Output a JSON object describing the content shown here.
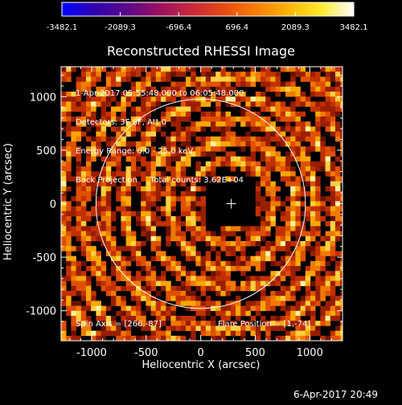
{
  "chart_data": {
    "type": "heatmap",
    "title": "Reconstructed RHESSI Image",
    "xlabel": "Heliocentric X (arcsec)",
    "ylabel": "Heliocentric Y (arcsec)",
    "xlim": [
      -1280,
      1300
    ],
    "ylim": [
      -1280,
      1280
    ],
    "xticks": [
      -1000,
      -500,
      0,
      500,
      1000
    ],
    "xtick_labels": [
      "-1000",
      "-500",
      "0",
      "500",
      "1000"
    ],
    "yticks": [
      -1000,
      -500,
      0,
      500,
      1000
    ],
    "ytick_labels": [
      "-1000",
      "-500",
      "0",
      "500",
      "1000"
    ],
    "colorbar": {
      "min": -3482.1,
      "max": 3482.1,
      "ticks": [
        -3482.1,
        -2089.3,
        -696.4,
        696.4,
        2089.3,
        3482.1
      ],
      "tick_labels": [
        "-3482.1",
        "-2089.3",
        "-696.4",
        "696.4",
        "2089.3",
        "3482.1"
      ],
      "colors": [
        "#0000ff",
        "#3000b0",
        "#5a0a8a",
        "#9a1060",
        "#c8283c",
        "#e64a14",
        "#f77f00",
        "#fbb500",
        "#fdea30",
        "#ffffff"
      ]
    },
    "solar_disk": {
      "center": [
        0,
        0
      ],
      "radius": 960,
      "color": "#ffffff"
    },
    "flare_position": {
      "x": 1,
      "y": -74
    },
    "marker": {
      "x": 280,
      "y": 0,
      "symbol": "+"
    },
    "info_lines": [
      "1-Apr-2017 05:55:48.000 to 06:05:48.000",
      "Detectors: 3F 6F, Att 0",
      "Energy Range: 6.0 - 25.0 keV",
      "Back Projection     Total counts: 3.62E+04"
    ],
    "spin_axis_text": "Spin Axis = [266,-87]",
    "flare_position_text": "Flare Position = [1,-74]",
    "footer_timestamp": "6-Apr-2017 20:49"
  }
}
